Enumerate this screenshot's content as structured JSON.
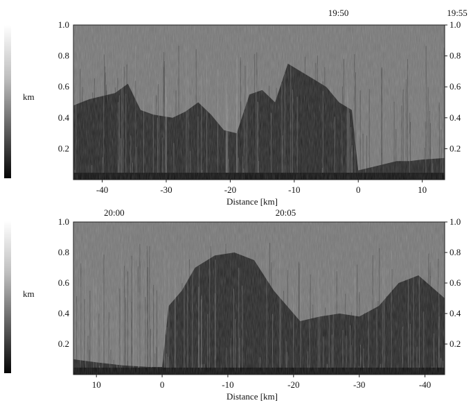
{
  "chart_data": [
    {
      "type": "heatmap",
      "time_labels": [
        {
          "x": -3.1,
          "label": "19:50"
        },
        {
          "x": 18.5,
          "label": "19:55"
        }
      ],
      "xlabel": "Distance [km]",
      "ylabel": "km",
      "xlim": [
        -44.5,
        13.5
      ],
      "ylim": [
        0.0,
        1.0
      ],
      "xticks": [
        -40,
        -30,
        -20,
        -10,
        0,
        10
      ],
      "xtick_labels": [
        "-40",
        "-30",
        "-20",
        "-10",
        "0",
        "10"
      ],
      "yticks": [
        0.2,
        0.4,
        0.6,
        0.8,
        1.0
      ],
      "ytick_labels": [
        "0.2",
        "0.4",
        "0.6",
        "0.8",
        "1.0"
      ],
      "right_ytick_labels": [
        "0.2",
        "0.4",
        "0.6",
        "0.8",
        "1.0"
      ],
      "profile_top_km": {
        "x": [
          -44.5,
          -42,
          -38,
          -36,
          -34,
          -32,
          -29,
          -27,
          -25,
          -23,
          -21,
          -19,
          -17,
          -15,
          -13,
          -11,
          -9,
          -7,
          -5,
          -3,
          -1,
          0,
          2,
          4,
          6,
          8,
          10,
          13.5
        ],
        "top": [
          0.48,
          0.52,
          0.56,
          0.62,
          0.45,
          0.42,
          0.4,
          0.44,
          0.5,
          0.42,
          0.32,
          0.3,
          0.55,
          0.58,
          0.5,
          0.75,
          0.7,
          0.65,
          0.6,
          0.5,
          0.45,
          0.06,
          0.08,
          0.1,
          0.12,
          0.12,
          0.13,
          0.14
        ]
      }
    },
    {
      "type": "heatmap",
      "time_labels": [
        {
          "x": 7.3,
          "label": "20:00"
        },
        {
          "x": -18.8,
          "label": "20:05"
        }
      ],
      "xlabel": "Distance [km]",
      "ylabel": "km",
      "xlim": [
        13.5,
        -43.0
      ],
      "ylim": [
        0.0,
        1.0
      ],
      "xticks": [
        10,
        0,
        -10,
        -20,
        -30,
        -40
      ],
      "xtick_labels": [
        "10",
        "0",
        "-10",
        "-20",
        "-30",
        "-40"
      ],
      "yticks": [
        0.2,
        0.4,
        0.6,
        0.8,
        1.0
      ],
      "ytick_labels": [
        "0.2",
        "0.4",
        "0.6",
        "0.8",
        "1.0"
      ],
      "right_ytick_labels": [
        "0.2",
        "0.4",
        "0.6",
        "0.8",
        "1.0"
      ],
      "profile_top_km": {
        "x": [
          13.5,
          10,
          6,
          2,
          0,
          -1,
          -3,
          -5,
          -8,
          -11,
          -14,
          -17,
          -19,
          -21,
          -24,
          -27,
          -30,
          -33,
          -36,
          -39,
          -43.0
        ],
        "top": [
          0.1,
          0.08,
          0.06,
          0.05,
          0.05,
          0.45,
          0.55,
          0.7,
          0.78,
          0.8,
          0.75,
          0.55,
          0.45,
          0.35,
          0.38,
          0.4,
          0.38,
          0.45,
          0.6,
          0.65,
          0.5
        ]
      }
    }
  ]
}
